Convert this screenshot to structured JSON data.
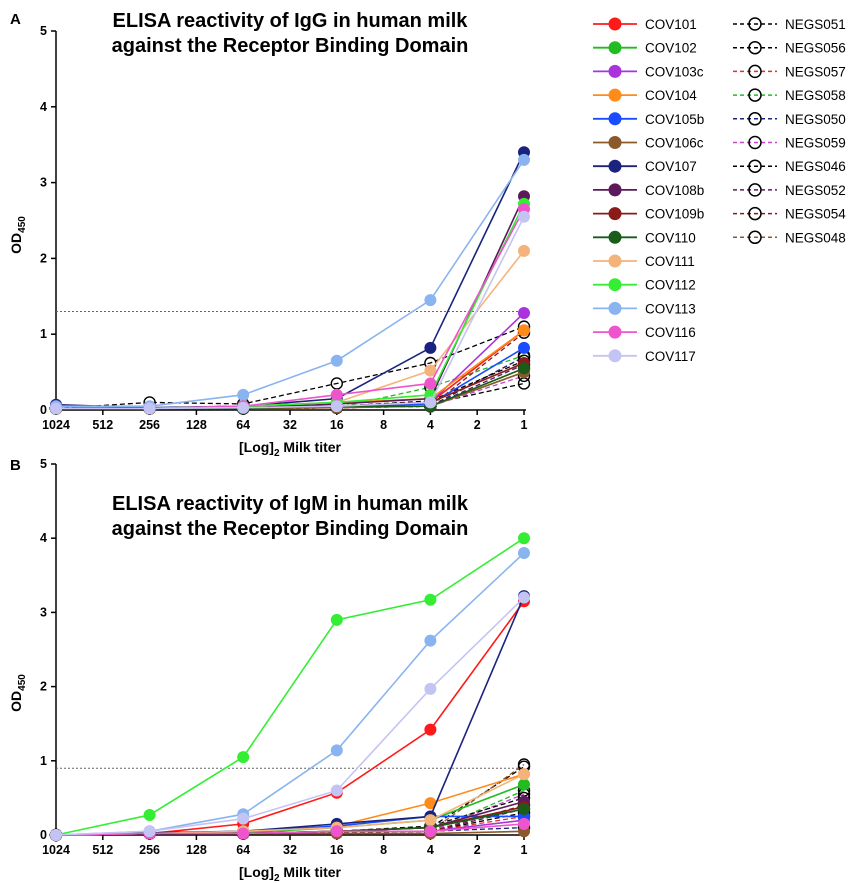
{
  "panels": {
    "A": {
      "letter": "A",
      "title_line1": "ELISA reactivity of IgG in human milk",
      "title_line2": "against the Receptor Binding Domain"
    },
    "B": {
      "letter": "B",
      "title_line1": "ELISA reactivity of IgM in human milk",
      "title_line2": "against the Receptor Binding Domain"
    }
  },
  "axis_labels": {
    "y_main": "OD",
    "y_sub": "450",
    "x_main": "[Log]",
    "x_sub": "2",
    "x_rest": " Milk titer"
  },
  "legend_left": [
    {
      "name": "COV101",
      "color": "#ff1a1a"
    },
    {
      "name": "COV102",
      "color": "#22bb22"
    },
    {
      "name": "COV103c",
      "color": "#aa33dd"
    },
    {
      "name": "COV104",
      "color": "#ff8c1a"
    },
    {
      "name": "COV105b",
      "color": "#1a4dff"
    },
    {
      "name": "COV106c",
      "color": "#8b5a2b"
    },
    {
      "name": "COV107",
      "color": "#1a237e"
    },
    {
      "name": "COV108b",
      "color": "#5c1a5c"
    },
    {
      "name": "COV109b",
      "color": "#8b1a1a"
    },
    {
      "name": "COV110",
      "color": "#1a5c1a"
    },
    {
      "name": "COV111",
      "color": "#f4b37a"
    },
    {
      "name": "COV112",
      "color": "#33ee33"
    },
    {
      "name": "COV113",
      "color": "#8ab4f0"
    },
    {
      "name": "COV116",
      "color": "#ee55cc"
    },
    {
      "name": "COV117",
      "color": "#c4c4f4"
    }
  ],
  "legend_right": [
    {
      "name": "NEGS051",
      "color": "#000000"
    },
    {
      "name": "NEGS056",
      "color": "#000000"
    },
    {
      "name": "NEGS057",
      "color": "#e03030"
    },
    {
      "name": "NEGS058",
      "color": "#22bb22"
    },
    {
      "name": "NEGS050",
      "color": "#1a237e"
    },
    {
      "name": "NEGS059",
      "color": "#cc44cc"
    },
    {
      "name": "NEGS046",
      "color": "#000000"
    },
    {
      "name": "NEGS052",
      "color": "#5c1a5c"
    },
    {
      "name": "NEGS054",
      "color": "#8b1a1a"
    },
    {
      "name": "NEGS048",
      "color": "#8b5a2b"
    }
  ],
  "chart_data": [
    {
      "type": "line",
      "title": "ELISA reactivity of IgG in human milk against the Receptor Binding Domain",
      "xlabel": "[Log]2 Milk titer",
      "ylabel": "OD450",
      "x_ticks": [
        "1024",
        "512",
        "256",
        "128",
        "64",
        "32",
        "16",
        "8",
        "4",
        "2",
        "1"
      ],
      "x": [
        1024,
        256,
        64,
        16,
        4,
        1
      ],
      "ylim": [
        0,
        5
      ],
      "y_ticks": [
        0,
        1,
        2,
        3,
        4,
        5
      ],
      "threshold": 1.3,
      "series": [
        {
          "name": "COV101",
          "values": [
            0.02,
            0.02,
            0.05,
            0.05,
            0.1,
            1.05
          ]
        },
        {
          "name": "COV102",
          "values": [
            0.02,
            0.02,
            0.03,
            0.05,
            0.05,
            0.5
          ]
        },
        {
          "name": "COV103c",
          "values": [
            0.02,
            0.02,
            0.03,
            0.05,
            0.1,
            1.28
          ]
        },
        {
          "name": "COV104",
          "values": [
            0.02,
            0.02,
            0.05,
            0.1,
            0.15,
            1.05
          ]
        },
        {
          "name": "COV105b",
          "values": [
            0.05,
            0.02,
            0.05,
            0.05,
            0.08,
            0.82
          ]
        },
        {
          "name": "COV106c",
          "values": [
            0.02,
            0.02,
            0.02,
            0.03,
            0.05,
            0.5
          ]
        },
        {
          "name": "COV107",
          "values": [
            0.07,
            0.03,
            0.05,
            0.15,
            0.82,
            3.4
          ]
        },
        {
          "name": "COV108b",
          "values": [
            0.02,
            0.02,
            0.03,
            0.08,
            0.15,
            2.82
          ]
        },
        {
          "name": "COV109b",
          "values": [
            0.02,
            0.02,
            0.03,
            0.05,
            0.1,
            0.62
          ]
        },
        {
          "name": "COV110",
          "values": [
            0.02,
            0.02,
            0.02,
            0.05,
            0.05,
            0.55
          ]
        },
        {
          "name": "COV111",
          "values": [
            0.02,
            0.02,
            0.05,
            0.1,
            0.52,
            2.1
          ]
        },
        {
          "name": "COV112",
          "values": [
            0.02,
            0.02,
            0.05,
            0.1,
            0.2,
            2.72
          ]
        },
        {
          "name": "COV113",
          "values": [
            0.05,
            0.05,
            0.2,
            0.65,
            1.45,
            3.3
          ]
        },
        {
          "name": "COV116",
          "values": [
            0.02,
            0.02,
            0.05,
            0.2,
            0.35,
            2.65
          ]
        },
        {
          "name": "COV117",
          "values": [
            0.02,
            0.02,
            0.03,
            0.05,
            0.1,
            2.55
          ]
        },
        {
          "name": "NEGS051",
          "values": [
            0.02,
            0.1,
            0.08,
            0.35,
            0.62,
            1.1
          ]
        },
        {
          "name": "NEGS056",
          "values": [
            0.02,
            0.02,
            0.02,
            0.05,
            0.08,
            0.35
          ]
        },
        {
          "name": "NEGS057",
          "values": [
            0.02,
            0.02,
            0.02,
            0.03,
            0.05,
            0.7
          ]
        },
        {
          "name": "NEGS058",
          "values": [
            0.02,
            0.02,
            0.02,
            0.03,
            0.3,
            0.72
          ]
        },
        {
          "name": "NEGS050",
          "values": [
            0.02,
            0.02,
            0.02,
            0.03,
            0.05,
            0.7
          ]
        },
        {
          "name": "NEGS059",
          "values": [
            0.02,
            0.02,
            0.02,
            0.03,
            0.05,
            0.45
          ]
        },
        {
          "name": "NEGS046",
          "values": [
            0.02,
            0.02,
            0.02,
            0.05,
            0.12,
            0.65
          ]
        },
        {
          "name": "NEGS052",
          "values": [
            0.02,
            0.02,
            0.02,
            0.03,
            0.05,
            0.6
          ]
        },
        {
          "name": "NEGS054",
          "values": [
            0.02,
            0.02,
            0.02,
            0.03,
            0.05,
            1.02
          ]
        },
        {
          "name": "NEGS048",
          "values": [
            0.02,
            0.02,
            0.02,
            0.03,
            0.05,
            0.55
          ]
        }
      ]
    },
    {
      "type": "line",
      "title": "ELISA reactivity of IgM in human milk against the Receptor Binding Domain",
      "xlabel": "[Log]2 Milk titer",
      "ylabel": "OD450",
      "x_ticks": [
        "1024",
        "512",
        "256",
        "128",
        "64",
        "32",
        "16",
        "8",
        "4",
        "2",
        "1"
      ],
      "x": [
        1024,
        256,
        64,
        16,
        4,
        1
      ],
      "ylim": [
        0,
        5
      ],
      "y_ticks": [
        0,
        1,
        2,
        3,
        4,
        5
      ],
      "threshold": 0.9,
      "series": [
        {
          "name": "COV101",
          "values": [
            0.0,
            0.02,
            0.15,
            0.57,
            1.42,
            3.15
          ]
        },
        {
          "name": "COV102",
          "values": [
            0.0,
            0.02,
            0.03,
            0.1,
            0.2,
            0.68
          ]
        },
        {
          "name": "COV103c",
          "values": [
            0.0,
            0.02,
            0.02,
            0.05,
            0.05,
            0.2
          ]
        },
        {
          "name": "COV104",
          "values": [
            0.0,
            0.02,
            0.05,
            0.12,
            0.43,
            0.82
          ]
        },
        {
          "name": "COV105b",
          "values": [
            0.0,
            0.02,
            0.05,
            0.12,
            0.25,
            0.25
          ]
        },
        {
          "name": "COV106c",
          "values": [
            0.0,
            0.02,
            0.02,
            0.02,
            0.02,
            0.05
          ]
        },
        {
          "name": "COV107",
          "values": [
            0.0,
            0.03,
            0.05,
            0.15,
            0.25,
            3.22
          ]
        },
        {
          "name": "COV108b",
          "values": [
            0.0,
            0.02,
            0.02,
            0.05,
            0.1,
            0.45
          ]
        },
        {
          "name": "COV109b",
          "values": [
            0.0,
            0.02,
            0.02,
            0.05,
            0.1,
            0.38
          ]
        },
        {
          "name": "COV110",
          "values": [
            0.0,
            0.02,
            0.02,
            0.05,
            0.1,
            0.35
          ]
        },
        {
          "name": "COV111",
          "values": [
            0.0,
            0.02,
            0.05,
            0.1,
            0.2,
            0.82
          ]
        },
        {
          "name": "COV112",
          "values": [
            0.0,
            0.27,
            1.05,
            2.9,
            3.17,
            4.0
          ]
        },
        {
          "name": "COV113",
          "values": [
            0.0,
            0.05,
            0.28,
            1.14,
            2.62,
            3.8
          ]
        },
        {
          "name": "COV116",
          "values": [
            0.0,
            0.02,
            0.02,
            0.05,
            0.05,
            0.15
          ]
        },
        {
          "name": "COV117",
          "values": [
            0.0,
            0.05,
            0.22,
            0.6,
            1.97,
            3.2
          ]
        },
        {
          "name": "NEGS051",
          "values": [
            0.0,
            0.02,
            0.02,
            0.05,
            0.1,
            0.92
          ]
        },
        {
          "name": "NEGS056",
          "values": [
            0.0,
            0.02,
            0.02,
            0.03,
            0.05,
            0.3
          ]
        },
        {
          "name": "NEGS057",
          "values": [
            0.0,
            0.02,
            0.02,
            0.03,
            0.05,
            0.25
          ]
        },
        {
          "name": "NEGS058",
          "values": [
            0.0,
            0.02,
            0.02,
            0.03,
            0.05,
            0.6
          ]
        },
        {
          "name": "NEGS050",
          "values": [
            0.0,
            0.02,
            0.02,
            0.03,
            0.05,
            0.1
          ]
        },
        {
          "name": "NEGS059",
          "values": [
            0.0,
            0.02,
            0.02,
            0.03,
            0.05,
            0.55
          ]
        },
        {
          "name": "NEGS046",
          "values": [
            0.0,
            0.02,
            0.02,
            0.05,
            0.12,
            0.5
          ]
        },
        {
          "name": "NEGS052",
          "values": [
            0.0,
            0.02,
            0.02,
            0.03,
            0.05,
            0.35
          ]
        },
        {
          "name": "NEGS054",
          "values": [
            0.0,
            0.02,
            0.02,
            0.03,
            0.05,
            0.4
          ]
        },
        {
          "name": "NEGS048",
          "values": [
            0.0,
            0.02,
            0.02,
            0.03,
            0.05,
            0.95
          ]
        }
      ]
    }
  ]
}
